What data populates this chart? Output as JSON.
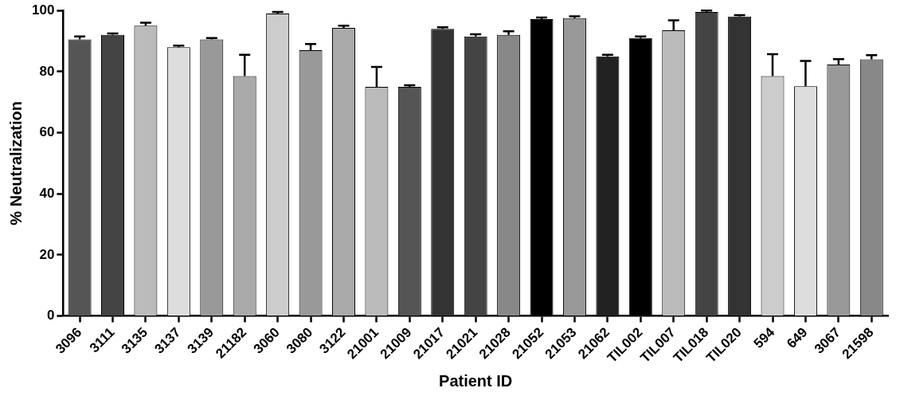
{
  "chart_data": {
    "type": "bar",
    "xlabel": "Patient ID",
    "ylabel": "% Neutralization",
    "categories": [
      "3096",
      "3111",
      "3135",
      "3137",
      "3139",
      "21182",
      "3060",
      "3080",
      "3122",
      "21001",
      "21009",
      "21017",
      "21021",
      "21028",
      "21052",
      "21053",
      "21062",
      "TIL002",
      "TIL007",
      "TIL018",
      "TIL020",
      "594",
      "649",
      "3067",
      "21598"
    ],
    "values": [
      90.5,
      92,
      95,
      88,
      90.5,
      78.5,
      99,
      87,
      94.3,
      75,
      75,
      94,
      91.5,
      92,
      97.2,
      97.5,
      85,
      91,
      93.5,
      99.5,
      98,
      78.5,
      75.2,
      82.3,
      84
    ],
    "errors": [
      [
        90.5,
        91.5
      ],
      [
        92,
        92.5
      ],
      [
        95,
        96
      ],
      [
        88,
        88.5
      ],
      [
        90.5,
        91
      ],
      [
        78.5,
        85.5
      ],
      [
        99,
        99.5
      ],
      [
        87,
        89
      ],
      [
        94.3,
        95
      ],
      [
        75,
        81.5
      ],
      [
        75,
        75.5
      ],
      [
        94,
        94.5
      ],
      [
        91.5,
        92.2
      ],
      [
        92,
        93.2
      ],
      [
        97.2,
        97.7
      ],
      [
        97.5,
        98.1
      ],
      [
        85,
        85.5
      ],
      [
        91,
        91.5
      ],
      [
        93.5,
        96.8
      ],
      [
        99.5,
        100
      ],
      [
        98,
        98.5
      ],
      [
        78.5,
        85.7
      ],
      [
        75.2,
        83.5
      ],
      [
        82.3,
        84.1
      ],
      [
        84,
        85.4
      ]
    ],
    "colors": [
      "#555555",
      "#444444",
      "#bbbbbb",
      "#dddddd",
      "#999999",
      "#aaaaaa",
      "#cccccc",
      "#999999",
      "#aaaaaa",
      "#bbbbbb",
      "#555555",
      "#333333",
      "#444444",
      "#888888",
      "#000000",
      "#999999",
      "#222222",
      "#000000",
      "#bbbbbb",
      "#444444",
      "#333333",
      "#cccccc",
      "#dddddd",
      "#999999",
      "#888888"
    ],
    "ylim": [
      0,
      100
    ],
    "yticks": [
      0,
      20,
      40,
      60,
      80,
      100
    ],
    "grid": false,
    "legend": false
  }
}
